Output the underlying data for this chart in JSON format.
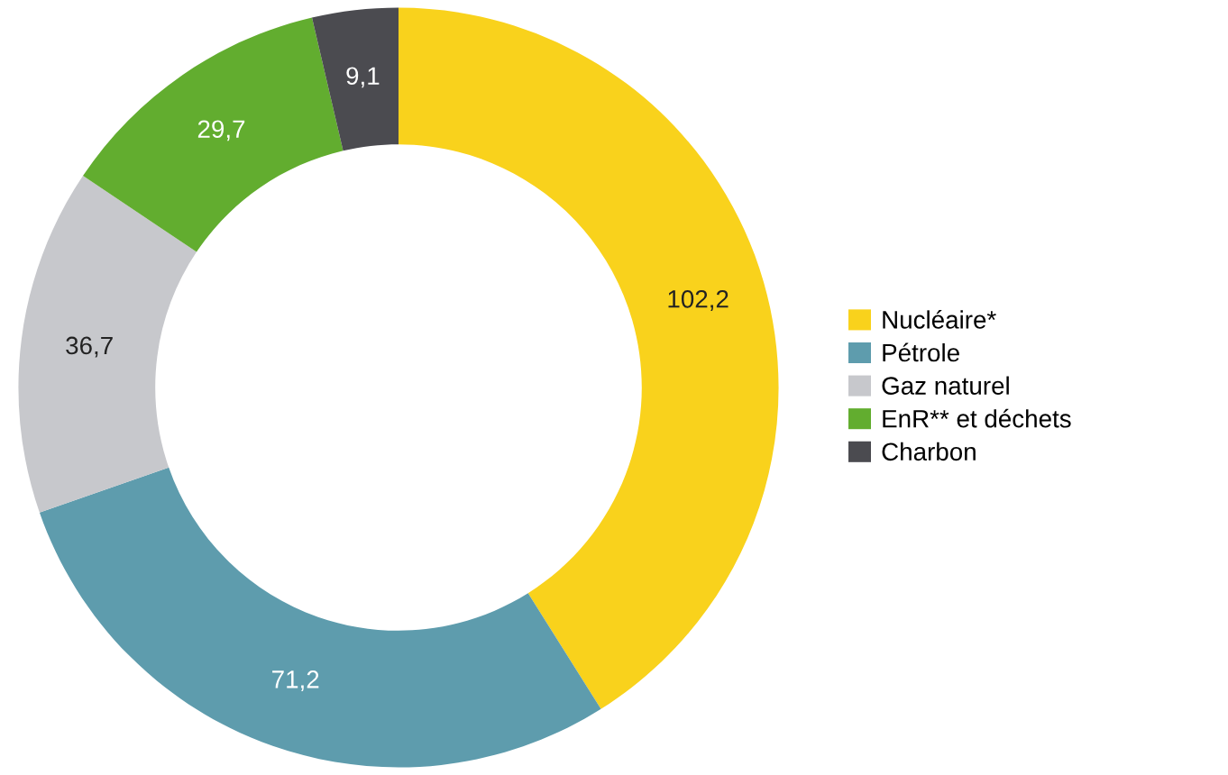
{
  "chart_data": {
    "type": "donut",
    "categories": [
      "Nucléaire*",
      "Pétrole",
      "Gaz naturel",
      "EnR** et déchets",
      "Charbon"
    ],
    "values": [
      102.2,
      71.2,
      36.7,
      29.7,
      9.1
    ],
    "colors": [
      "#f9d21c",
      "#5e9cad",
      "#c7c8cc",
      "#62ad2f",
      "#4b4b50"
    ],
    "value_labels": [
      "102,2",
      "71,2",
      "36,7",
      "29,7",
      "9,1"
    ],
    "legend": "right"
  }
}
